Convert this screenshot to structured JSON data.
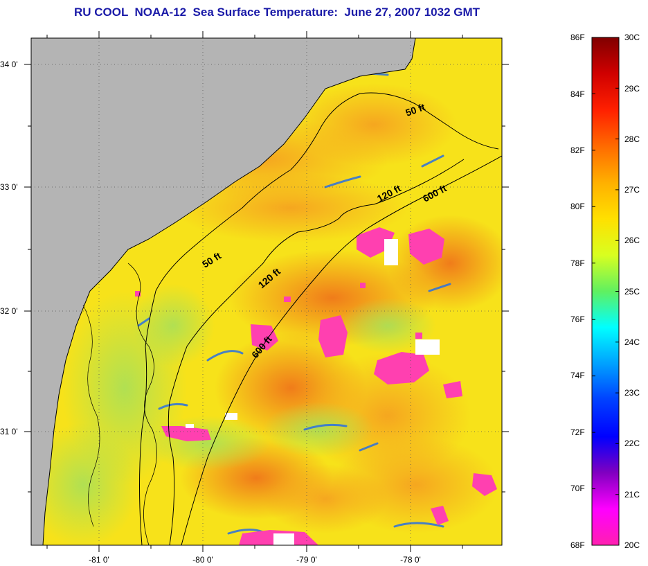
{
  "title": "RU COOL  NOAA-12  Sea Surface Temperature:  June 27, 2007 1032 GMT",
  "map": {
    "latitude_labels": [
      "34 0'",
      "33 0'",
      "32 0'",
      "31 0'"
    ],
    "longitude_labels": [
      "-81 0'",
      "-80 0'",
      "-79 0'",
      "-78 0'"
    ],
    "contour_labels": [
      "50 ft",
      "120 ft",
      "600 ft",
      "50 ft",
      "120 ft",
      "600 ft"
    ],
    "colors": {
      "land": "#b4b4b4",
      "water_base": "#f7e21a",
      "warm": "#f5a020",
      "hot": "#ef6a1a",
      "cool": "#a8e048",
      "cold": "#2a70e0",
      "cloud": "#ff40b0",
      "missing": "#ffffff"
    }
  },
  "colorbar": {
    "fahrenheit_labels": [
      "86F",
      "84F",
      "82F",
      "80F",
      "78F",
      "76F",
      "74F",
      "72F",
      "70F",
      "68F"
    ],
    "celsius_labels": [
      "30C",
      "29C",
      "28C",
      "27C",
      "26C",
      "25C",
      "24C",
      "23C",
      "22C",
      "21C",
      "20C"
    ],
    "gradient_stops": [
      "#800000",
      "#d00000",
      "#ff2000",
      "#ff6a00",
      "#ffb000",
      "#ffe000",
      "#d8ff20",
      "#60f060",
      "#00ffff",
      "#00a0ff",
      "#0040ff",
      "#0000ff",
      "#8000c0",
      "#ff00ff",
      "#ff20b0"
    ]
  }
}
